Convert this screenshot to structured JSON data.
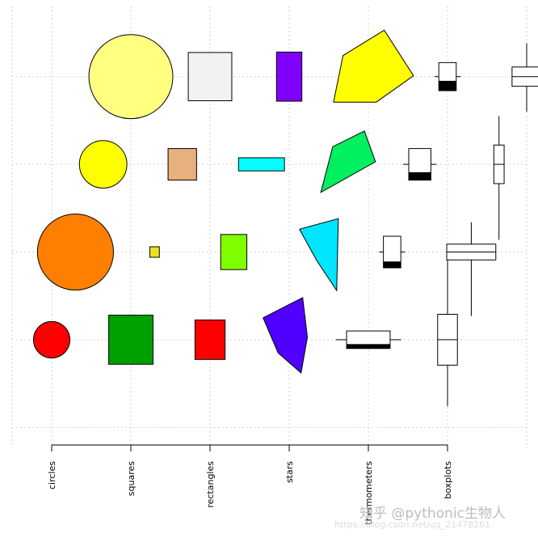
{
  "chart_data": {
    "type": "symbols",
    "title": "",
    "xlabel": "",
    "ylabel": "",
    "xlim": [
      0,
      6.5
    ],
    "ylim": [
      -0.2,
      4.8
    ],
    "grid": true,
    "x_ticks": [
      0.5,
      1.5,
      2.5,
      3.5,
      4.5,
      5.5
    ],
    "x_tick_labels": [
      "circles",
      "squares",
      "rectangles",
      "stars",
      "thermometers",
      "boxplots"
    ],
    "circles": [
      {
        "x": 0.5,
        "y": 1,
        "r": 0.23,
        "color": "#FF0000"
      },
      {
        "x": 0.8,
        "y": 2,
        "r": 0.48,
        "color": "#FF7F00"
      },
      {
        "x": 1.15,
        "y": 3,
        "r": 0.3,
        "color": "#FFFF00"
      },
      {
        "x": 1.5,
        "y": 4,
        "r": 0.53,
        "color": "#FFFF80"
      }
    ],
    "squares": [
      {
        "x": 1.5,
        "y": 1,
        "size": 0.56,
        "color": "#00A000"
      },
      {
        "x": 1.8,
        "y": 2,
        "size": 0.12,
        "color": "#F0E020"
      },
      {
        "x": 2.15,
        "y": 3,
        "size": 0.36,
        "color": "#E8B07C"
      },
      {
        "x": 2.5,
        "y": 4,
        "size": 0.55,
        "color": "#F2F2F2"
      }
    ],
    "rectangles": [
      {
        "x": 2.5,
        "y": 1,
        "w": 0.38,
        "h": 0.45,
        "color": "#FF0000"
      },
      {
        "x": 2.8,
        "y": 2,
        "w": 0.33,
        "h": 0.4,
        "color": "#80FF00"
      },
      {
        "x": 3.15,
        "y": 3,
        "w": 0.58,
        "h": 0.15,
        "color": "#00FFFF"
      },
      {
        "x": 3.5,
        "y": 4,
        "w": 0.32,
        "h": 0.56,
        "color": "#8000FF"
      }
    ],
    "stars": [
      {
        "x": 3.5,
        "y": 1,
        "color": "#5000FF",
        "points": [
          [
            -0.33,
            0.25
          ],
          [
            0.17,
            0.48
          ],
          [
            0.23,
            0.03
          ],
          [
            0.15,
            -0.38
          ],
          [
            -0.14,
            -0.15
          ]
        ]
      },
      {
        "x": 3.8,
        "y": 2,
        "color": "#00E5FF",
        "points": [
          [
            -0.17,
            0.26
          ],
          [
            0.32,
            0.38
          ],
          [
            0.3,
            -0.44
          ],
          [
            0.05,
            -0.1
          ]
        ]
      },
      {
        "x": 4.15,
        "y": 3,
        "color": "#00F060",
        "points": [
          [
            -0.1,
            0.2
          ],
          [
            0.3,
            0.38
          ],
          [
            0.44,
            0.03
          ],
          [
            -0.25,
            -0.32
          ]
        ]
      },
      {
        "x": 4.5,
        "y": 4,
        "color": "#FFFF00",
        "points": [
          [
            -0.32,
            0.24
          ],
          [
            0.2,
            0.53
          ],
          [
            0.57,
            0.01
          ],
          [
            0.1,
            -0.29
          ],
          [
            -0.44,
            -0.29
          ]
        ]
      }
    ],
    "thermometers": [
      {
        "x": 4.5,
        "y": 1,
        "w": 0.55,
        "h": 0.2,
        "fill": 0.25
      },
      {
        "x": 4.8,
        "y": 2,
        "w": 0.22,
        "h": 0.36,
        "fill": 0.2
      },
      {
        "x": 5.15,
        "y": 3,
        "w": 0.28,
        "h": 0.36,
        "fill": 0.25
      },
      {
        "x": 5.5,
        "y": 4,
        "w": 0.22,
        "h": 0.32,
        "fill": 0.35
      }
    ],
    "boxplots": [
      {
        "x": 5.5,
        "y": 1,
        "w": 0.25,
        "h": 0.58,
        "median": 0.5,
        "whisker_low": 0.47,
        "whisker_high": 0.78
      },
      {
        "x": 5.8,
        "y": 2,
        "w": 0.62,
        "h": 0.18,
        "median": 0.5,
        "whisker_low": 0.64,
        "whisker_high": 0.25
      },
      {
        "x": 6.15,
        "y": 3,
        "w": 0.13,
        "h": 0.44,
        "median": 0.5,
        "whisker_low": 0.64,
        "whisker_high": 0.33
      },
      {
        "x": 6.5,
        "y": 4,
        "w": 0.37,
        "h": 0.22,
        "median": 0.5,
        "whisker_low": 0.29,
        "whisker_high": 0.27
      }
    ]
  },
  "watermark": {
    "line1": "知乎 @pythonic生物人",
    "line2": "https://blog.csdn.net/qq_21478261"
  }
}
